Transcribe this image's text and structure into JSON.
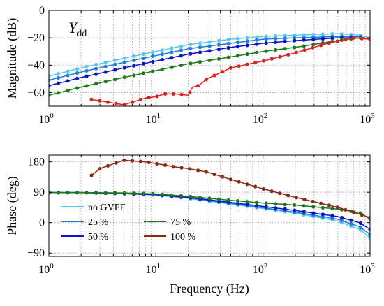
{
  "chart_data": [
    {
      "type": "line",
      "id": "magnitude",
      "annotation": {
        "main": "Y",
        "sub": "dd"
      },
      "ylabel": "Magnitude (dB)",
      "xlabel": "",
      "xscale": "log",
      "xlim": [
        1,
        1000
      ],
      "ylim": [
        -70,
        0
      ],
      "xticks": [
        1,
        10,
        100,
        1000
      ],
      "xtick_labels": [
        {
          "base": "10",
          "exp": "0"
        },
        {
          "base": "10",
          "exp": "1"
        },
        {
          "base": "10",
          "exp": "2"
        },
        {
          "base": "10",
          "exp": "3"
        }
      ],
      "yticks": [
        0,
        -20,
        -40,
        -60
      ],
      "ytick_labels": [
        "0",
        "−20",
        "−40",
        "−60"
      ],
      "grid": true,
      "series": [
        {
          "name": "no GVFF",
          "color": "#5bc8f5",
          "x": [
            1,
            2,
            5,
            10,
            20,
            50,
            100,
            200,
            500,
            800,
            1000
          ],
          "y": [
            -48,
            -42,
            -35,
            -30,
            -25,
            -21,
            -19,
            -18,
            -17,
            -18,
            -20
          ]
        },
        {
          "name": "25 %",
          "color": "#1f7fd6",
          "x": [
            1,
            2,
            5,
            10,
            20,
            50,
            100,
            200,
            500,
            800,
            1000
          ],
          "y": [
            -51,
            -45,
            -38,
            -33,
            -28,
            -24,
            -21,
            -20,
            -19,
            -19,
            -21
          ]
        },
        {
          "name": "50 %",
          "color": "#0a14c8",
          "x": [
            1,
            2,
            5,
            10,
            20,
            50,
            100,
            200,
            500,
            800,
            1000
          ],
          "y": [
            -55,
            -49,
            -42,
            -37,
            -32,
            -27,
            -24,
            -22,
            -20,
            -20,
            -21
          ]
        },
        {
          "name": "75 %",
          "color": "#1e7a1e",
          "x": [
            1,
            2,
            5,
            10,
            20,
            50,
            100,
            200,
            500,
            800,
            1000
          ],
          "y": [
            -62,
            -56,
            -49,
            -44,
            -39,
            -34,
            -30,
            -27,
            -22,
            -20,
            -21
          ]
        },
        {
          "name": "100 %",
          "color": "#e02020",
          "x": [
            2.5,
            5,
            8,
            10,
            12,
            15,
            20,
            22,
            25,
            30,
            50,
            100,
            200,
            400,
            700,
            1000
          ],
          "y": [
            -65,
            -69,
            -64,
            -63,
            -61,
            -61,
            -62,
            -56,
            -55,
            -50,
            -42,
            -37,
            -31,
            -24,
            -20,
            -21
          ]
        }
      ]
    },
    {
      "type": "line",
      "id": "phase",
      "ylabel": "Phase (deg)",
      "xlabel": "Frequency (Hz)",
      "xscale": "log",
      "xlim": [
        1,
        1000
      ],
      "ylim": [
        -100,
        200
      ],
      "xticks": [
        1,
        10,
        100,
        1000
      ],
      "xtick_labels": [
        {
          "base": "10",
          "exp": "0"
        },
        {
          "base": "10",
          "exp": "1"
        },
        {
          "base": "10",
          "exp": "2"
        },
        {
          "base": "10",
          "exp": "3"
        }
      ],
      "yticks": [
        180,
        90,
        0,
        -90
      ],
      "ytick_labels": [
        "180",
        "90",
        "0",
        "−90"
      ],
      "grid": true,
      "legend": "lower-left",
      "series": [
        {
          "name": "no GVFF",
          "color": "#5bc8f5",
          "x": [
            1,
            2,
            5,
            10,
            20,
            50,
            100,
            200,
            500,
            800,
            1000
          ],
          "y": [
            89,
            89,
            86,
            82,
            72,
            55,
            42,
            28,
            5,
            -20,
            -45
          ]
        },
        {
          "name": "25 %",
          "color": "#1f7fd6",
          "x": [
            1,
            2,
            5,
            10,
            20,
            50,
            100,
            200,
            500,
            800,
            1000
          ],
          "y": [
            89,
            89,
            86,
            82,
            73,
            57,
            44,
            31,
            10,
            -12,
            -35
          ]
        },
        {
          "name": "50 %",
          "color": "#0a14c8",
          "x": [
            1,
            2,
            5,
            10,
            20,
            50,
            100,
            200,
            500,
            800,
            1000
          ],
          "y": [
            89,
            89,
            86,
            83,
            75,
            60,
            48,
            36,
            18,
            0,
            -20
          ]
        },
        {
          "name": "75 %",
          "color": "#1e7a1e",
          "x": [
            1,
            2,
            5,
            10,
            20,
            50,
            100,
            200,
            500,
            800,
            1000
          ],
          "y": [
            89,
            89,
            88,
            85,
            78,
            66,
            58,
            52,
            40,
            30,
            10
          ]
        },
        {
          "name": "100 %",
          "color": "#8b2a14",
          "x": [
            2.5,
            3,
            5,
            8,
            10,
            15,
            20,
            30,
            50,
            100,
            200,
            500,
            800,
            1000
          ],
          "y": [
            140,
            160,
            185,
            180,
            175,
            165,
            160,
            150,
            128,
            100,
            75,
            45,
            25,
            15
          ]
        }
      ]
    }
  ]
}
